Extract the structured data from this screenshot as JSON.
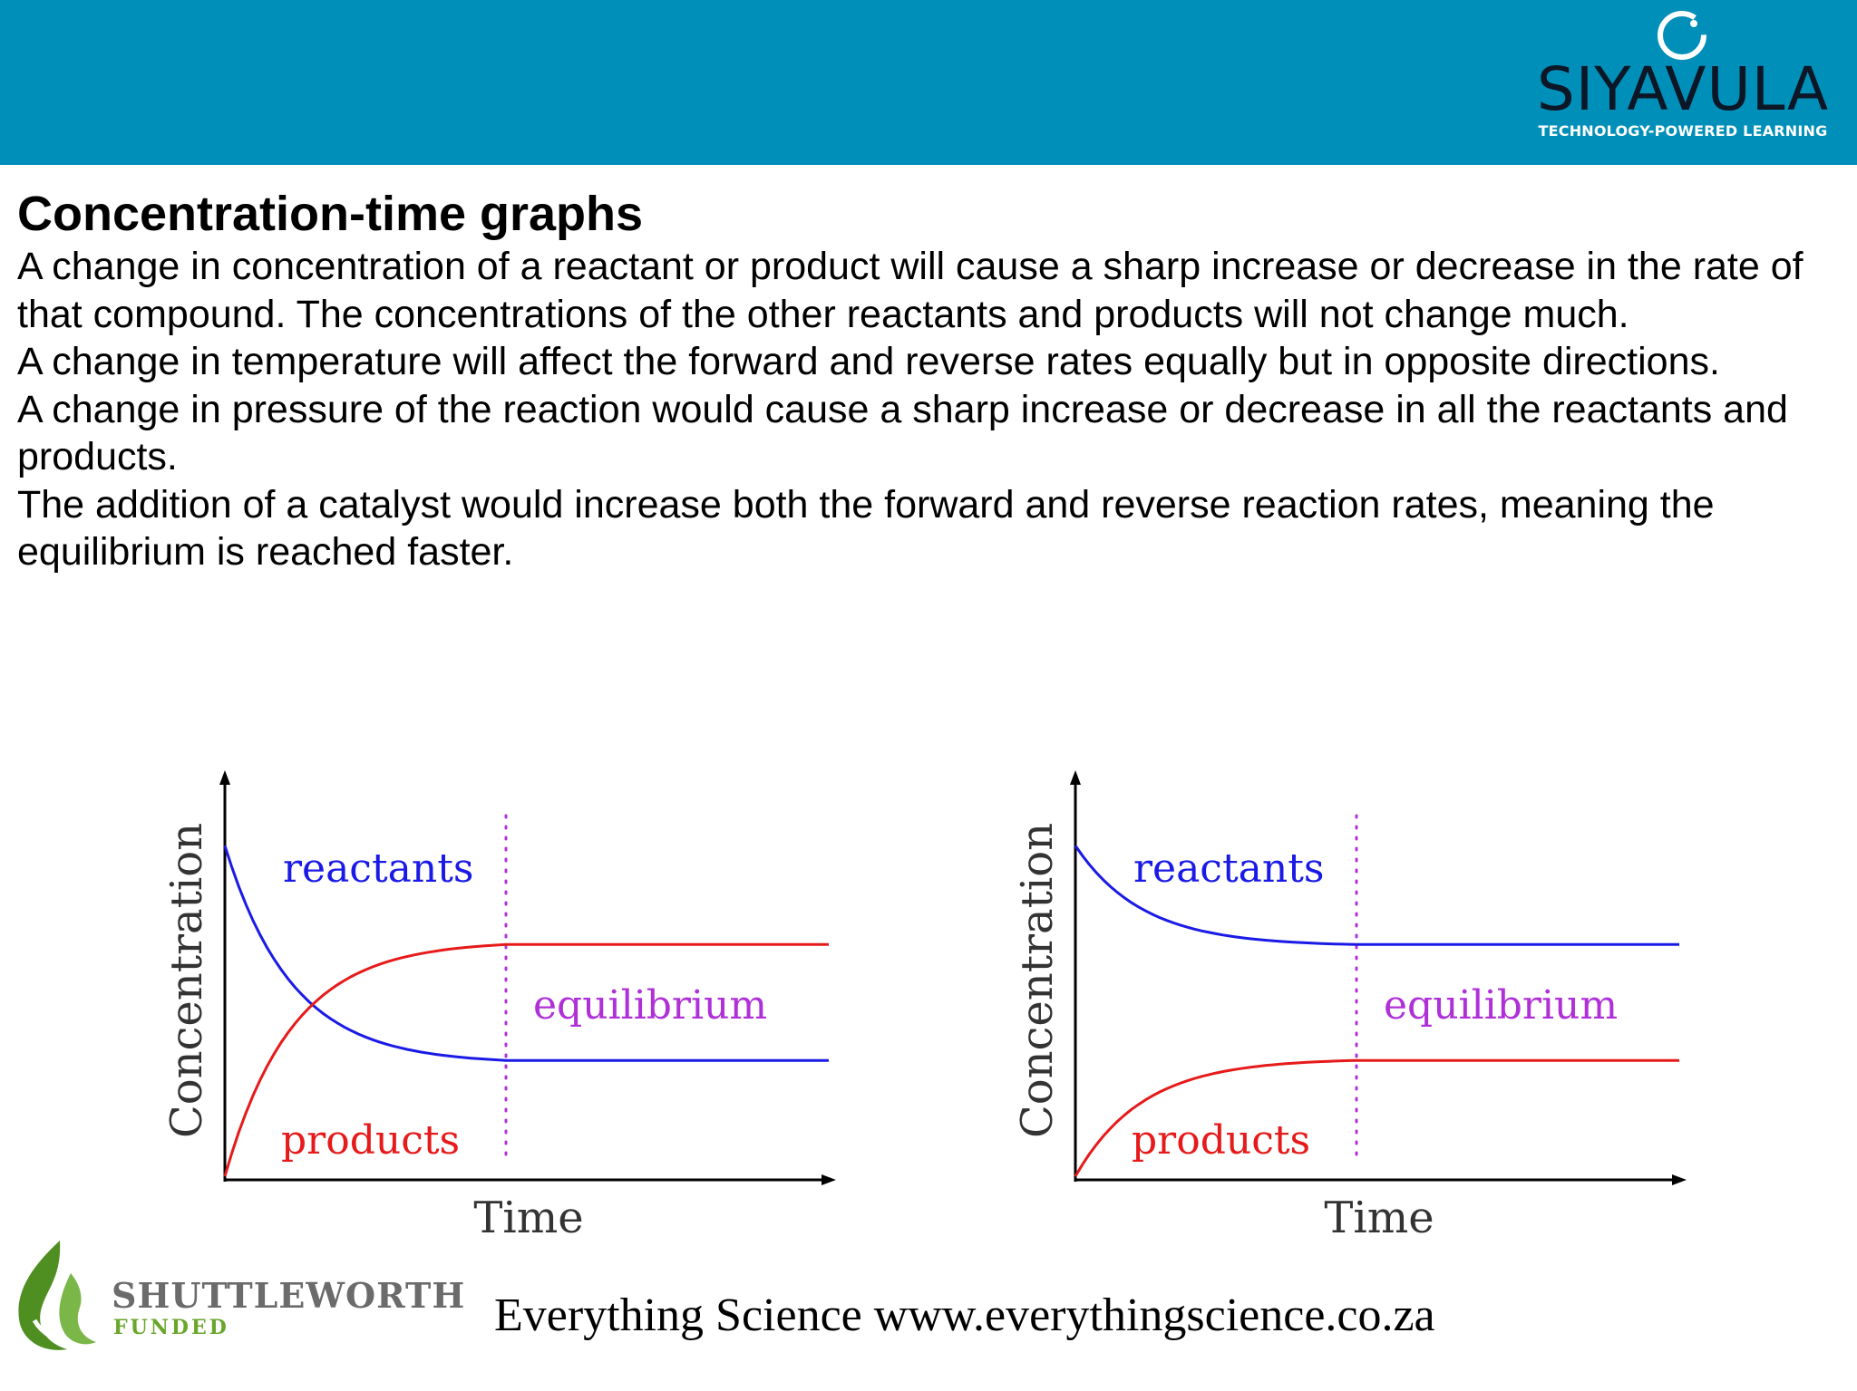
{
  "header": {
    "brand": {
      "wordmark": "SIYAVULA",
      "tagline": "TECHNOLOGY-POWERED LEARNING",
      "color": "#0b1626"
    },
    "background": "#008fb8"
  },
  "slide": {
    "title": "Concentration-time graphs",
    "paragraphs": [
      "A change in concentration of a reactant or product will cause a sharp increase or decrease in the rate of that compound. The concentrations of the other reactants and products will not change much.",
      "A change in temperature will affect the forward and reverse rates equally but in opposite directions.",
      "A change in pressure of the reaction would cause a sharp increase or decrease in all the reactants and products.",
      "The addition of a catalyst would increase both the forward and reverse reaction rates, meaning the equilibrium is reached faster."
    ]
  },
  "diagrams": [
    {
      "ylabel": "Concentration",
      "xlabel": "Time",
      "reactants_label": "reactants",
      "products_label": "products",
      "equilibrium_label": "equilibrium",
      "reactants_level": 0.34,
      "products_level": 0.68
    },
    {
      "ylabel": "Concentration",
      "xlabel": "Time",
      "reactants_label": "reactants",
      "products_label": "products",
      "equilibrium_label": "equilibrium",
      "reactants_level": 0.68,
      "products_level": 0.34
    }
  ],
  "colors": {
    "reactants": "#1a1ae6",
    "products": "#e61a1a",
    "equilibrium": "#b030d8",
    "axis": "#000000",
    "text": "#000000"
  },
  "footer": {
    "sponsor_name": "SHUTTLEWORTH",
    "sponsor_tag": "FUNDED",
    "credit": "Everything Science www.everythingscience.co.za"
  }
}
